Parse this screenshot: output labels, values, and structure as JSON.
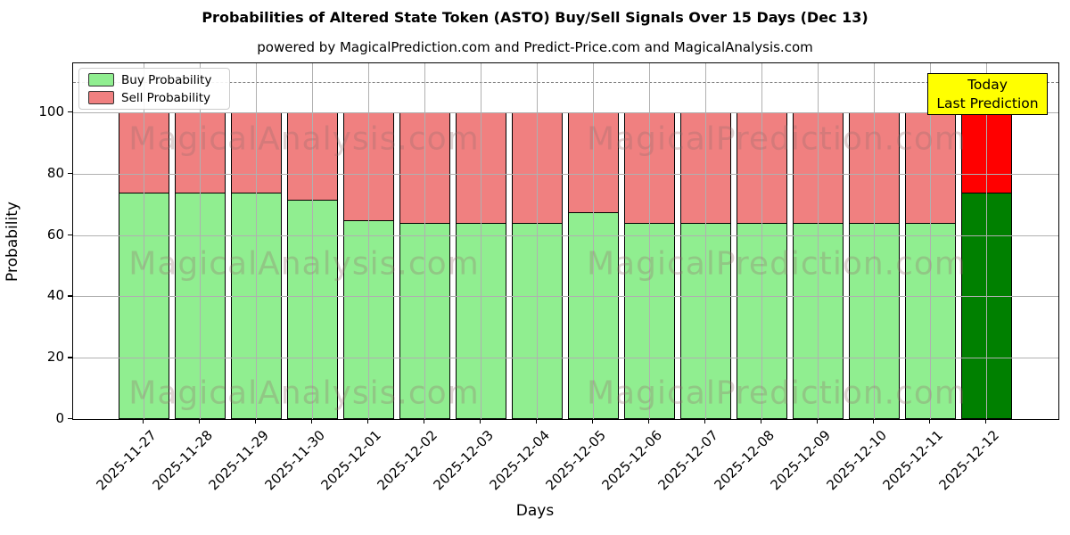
{
  "title": "Probabilities of Altered State Token (ASTO) Buy/Sell Signals Over 15 Days (Dec 13)",
  "subtitle": "powered by MagicalPrediction.com and Predict-Price.com and MagicalAnalysis.com",
  "legend": {
    "buy_label": "Buy Probability",
    "sell_label": "Sell Probability"
  },
  "annotation": {
    "line1": "Today",
    "line2": "Last Prediction",
    "bg_color": "#FFFF00"
  },
  "watermarks": {
    "left": "MagicalAnalysis.com",
    "right": "MagicalPrediction.com"
  },
  "colors": {
    "buy": "#90EE90",
    "sell": "#F08080",
    "buy_last": "#008000",
    "sell_last": "#FF0000",
    "grid": "#b0b0b0",
    "dashed_line": "#7f7f7f"
  },
  "chart_data": {
    "type": "bar",
    "stacked": true,
    "title": "Probabilities of Altered State Token (ASTO) Buy/Sell Signals Over 15 Days (Dec 13)",
    "xlabel": "Days",
    "ylabel": "Probability",
    "categories": [
      "2025-11-27",
      "2025-11-28",
      "2025-11-29",
      "2025-11-30",
      "2025-12-01",
      "2025-12-02",
      "2025-12-03",
      "2025-12-04",
      "2025-12-05",
      "2025-12-06",
      "2025-12-07",
      "2025-12-08",
      "2025-12-09",
      "2025-12-10",
      "2025-12-11",
      "2025-12-12"
    ],
    "series": [
      {
        "name": "Buy Probability",
        "values": [
          74,
          74,
          74,
          71.5,
          65,
          64,
          64,
          64,
          67.5,
          64,
          64,
          64,
          64,
          64,
          64,
          74
        ]
      },
      {
        "name": "Sell Probability",
        "values": [
          26,
          26,
          26,
          28.5,
          35,
          36,
          36,
          36,
          32.5,
          36,
          36,
          36,
          36,
          36,
          36,
          26
        ]
      }
    ],
    "ylim": [
      0,
      116
    ],
    "yticks": [
      0,
      20,
      40,
      60,
      80,
      100
    ],
    "dashed_line_y": 110,
    "grid": true,
    "legend_position": "upper left",
    "highlight_last_bar": true
  }
}
